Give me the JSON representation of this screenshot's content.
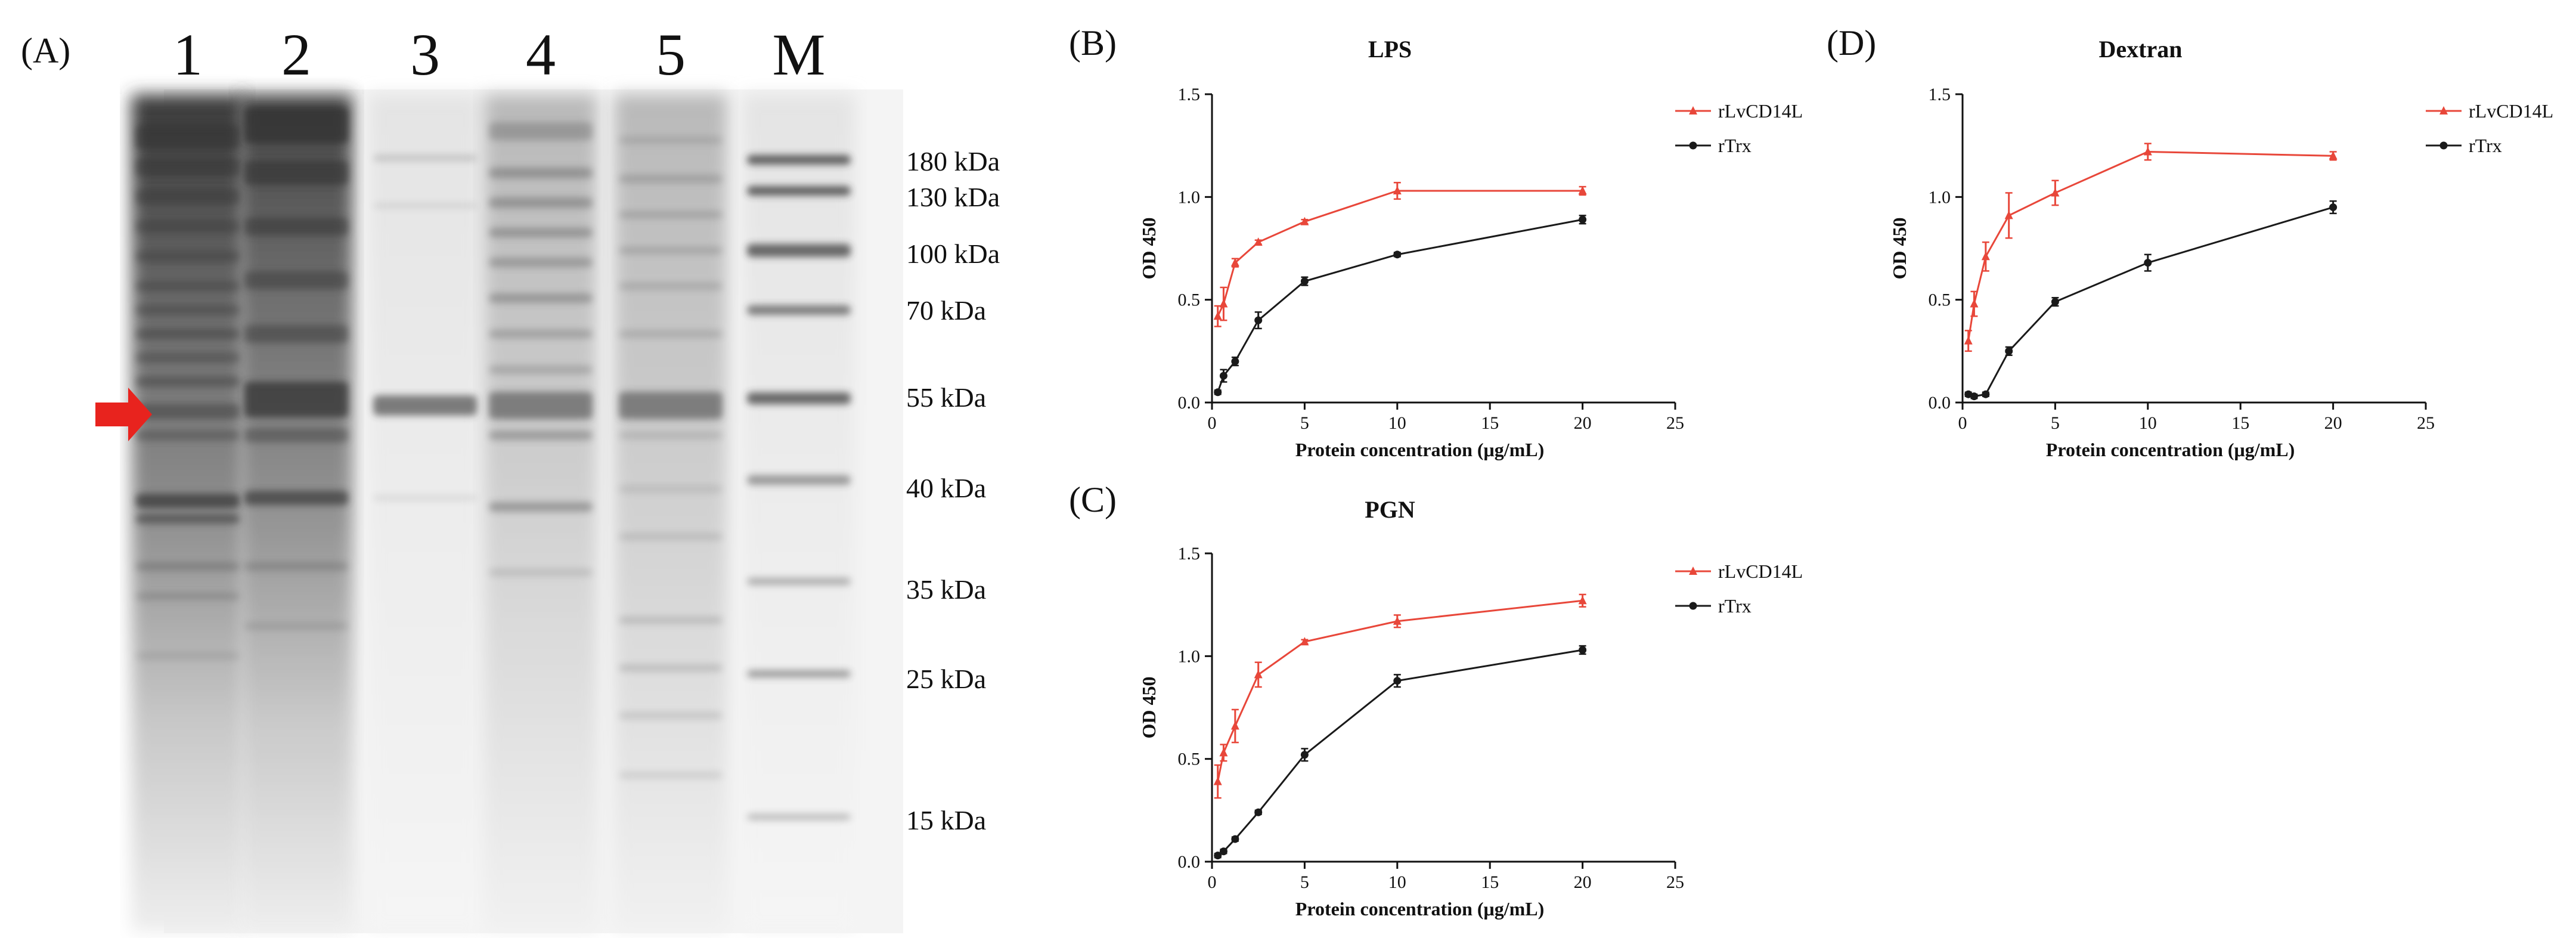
{
  "gel": {
    "panel_label": "(A)",
    "lanes": [
      "1",
      "2",
      "3",
      "4",
      "5",
      "M"
    ],
    "markers": [
      "180 kDa",
      "130 kDa",
      "100 kDa",
      "70 kDa",
      "55 kDa",
      "40 kDa",
      "35 kDa",
      "25 kDa",
      "15 kDa"
    ],
    "arrow_color": "#e8231e"
  },
  "colors": {
    "rLvCD14L": "#e8473a",
    "rTrx": "#1a1a1a"
  },
  "chart_data": [
    {
      "panel": "(B)",
      "type": "line",
      "title": "LPS",
      "xlabel": "Protein concentration (μg/mL)",
      "ylabel": "OD 450",
      "xlim": [
        0,
        25
      ],
      "ylim": [
        0,
        1.5
      ],
      "xticks": [
        "0",
        "5",
        "10",
        "15",
        "20",
        "25"
      ],
      "yticks": [
        "0.0",
        "0.5",
        "1.0",
        "1.5"
      ],
      "legend_position": "top-right",
      "series": [
        {
          "name": "rLvCD14L",
          "marker": "triangle",
          "x": [
            0.3125,
            0.625,
            1.25,
            2.5,
            5,
            10,
            20
          ],
          "y": [
            0.42,
            0.48,
            0.68,
            0.78,
            0.88,
            1.03,
            1.03
          ],
          "err": [
            0.05,
            0.08,
            0.02,
            0.01,
            0.01,
            0.04,
            0.02
          ]
        },
        {
          "name": "rTrx",
          "marker": "circle",
          "x": [
            0.3125,
            0.625,
            1.25,
            2.5,
            5,
            10,
            20
          ],
          "y": [
            0.05,
            0.13,
            0.2,
            0.4,
            0.59,
            0.72,
            0.89
          ],
          "err": [
            0.01,
            0.03,
            0.02,
            0.04,
            0.02,
            0.01,
            0.02
          ]
        }
      ]
    },
    {
      "panel": "(C)",
      "type": "line",
      "title": "PGN",
      "xlabel": "Protein concentration (μg/mL)",
      "ylabel": "OD 450",
      "xlim": [
        0,
        25
      ],
      "ylim": [
        0,
        1.5
      ],
      "xticks": [
        "0",
        "5",
        "10",
        "15",
        "20",
        "25"
      ],
      "yticks": [
        "0.0",
        "0.5",
        "1.0",
        "1.5"
      ],
      "legend_position": "top-right",
      "series": [
        {
          "name": "rLvCD14L",
          "marker": "triangle",
          "x": [
            0.3125,
            0.625,
            1.25,
            2.5,
            5,
            10,
            20
          ],
          "y": [
            0.39,
            0.53,
            0.66,
            0.91,
            1.07,
            1.17,
            1.27
          ],
          "err": [
            0.08,
            0.04,
            0.08,
            0.06,
            0.01,
            0.03,
            0.03
          ]
        },
        {
          "name": "rTrx",
          "marker": "circle",
          "x": [
            0.3125,
            0.625,
            1.25,
            2.5,
            5,
            10,
            20
          ],
          "y": [
            0.03,
            0.05,
            0.11,
            0.24,
            0.52,
            0.88,
            1.03
          ],
          "err": [
            0.01,
            0.01,
            0.01,
            0.01,
            0.03,
            0.03,
            0.02
          ]
        }
      ]
    },
    {
      "panel": "(D)",
      "type": "line",
      "title": "Dextran",
      "xlabel": "Protein concentration (μg/mL)",
      "ylabel": "OD 450",
      "xlim": [
        0,
        25
      ],
      "ylim": [
        0,
        1.5
      ],
      "xticks": [
        "0",
        "5",
        "10",
        "15",
        "20",
        "25"
      ],
      "yticks": [
        "0.0",
        "0.5",
        "1.0",
        "1.5"
      ],
      "legend_position": "top-right",
      "series": [
        {
          "name": "rLvCD14L",
          "marker": "triangle",
          "x": [
            0.3125,
            0.625,
            1.25,
            2.5,
            5,
            10,
            20
          ],
          "y": [
            0.3,
            0.48,
            0.71,
            0.91,
            1.02,
            1.22,
            1.2
          ],
          "err": [
            0.05,
            0.06,
            0.07,
            0.11,
            0.06,
            0.04,
            0.02
          ]
        },
        {
          "name": "rTrx",
          "marker": "circle",
          "x": [
            0.3125,
            0.625,
            1.25,
            2.5,
            5,
            10,
            20
          ],
          "y": [
            0.04,
            0.03,
            0.04,
            0.25,
            0.49,
            0.68,
            0.95
          ],
          "err": [
            0.01,
            0.01,
            0.01,
            0.02,
            0.02,
            0.04,
            0.03
          ]
        }
      ]
    }
  ]
}
